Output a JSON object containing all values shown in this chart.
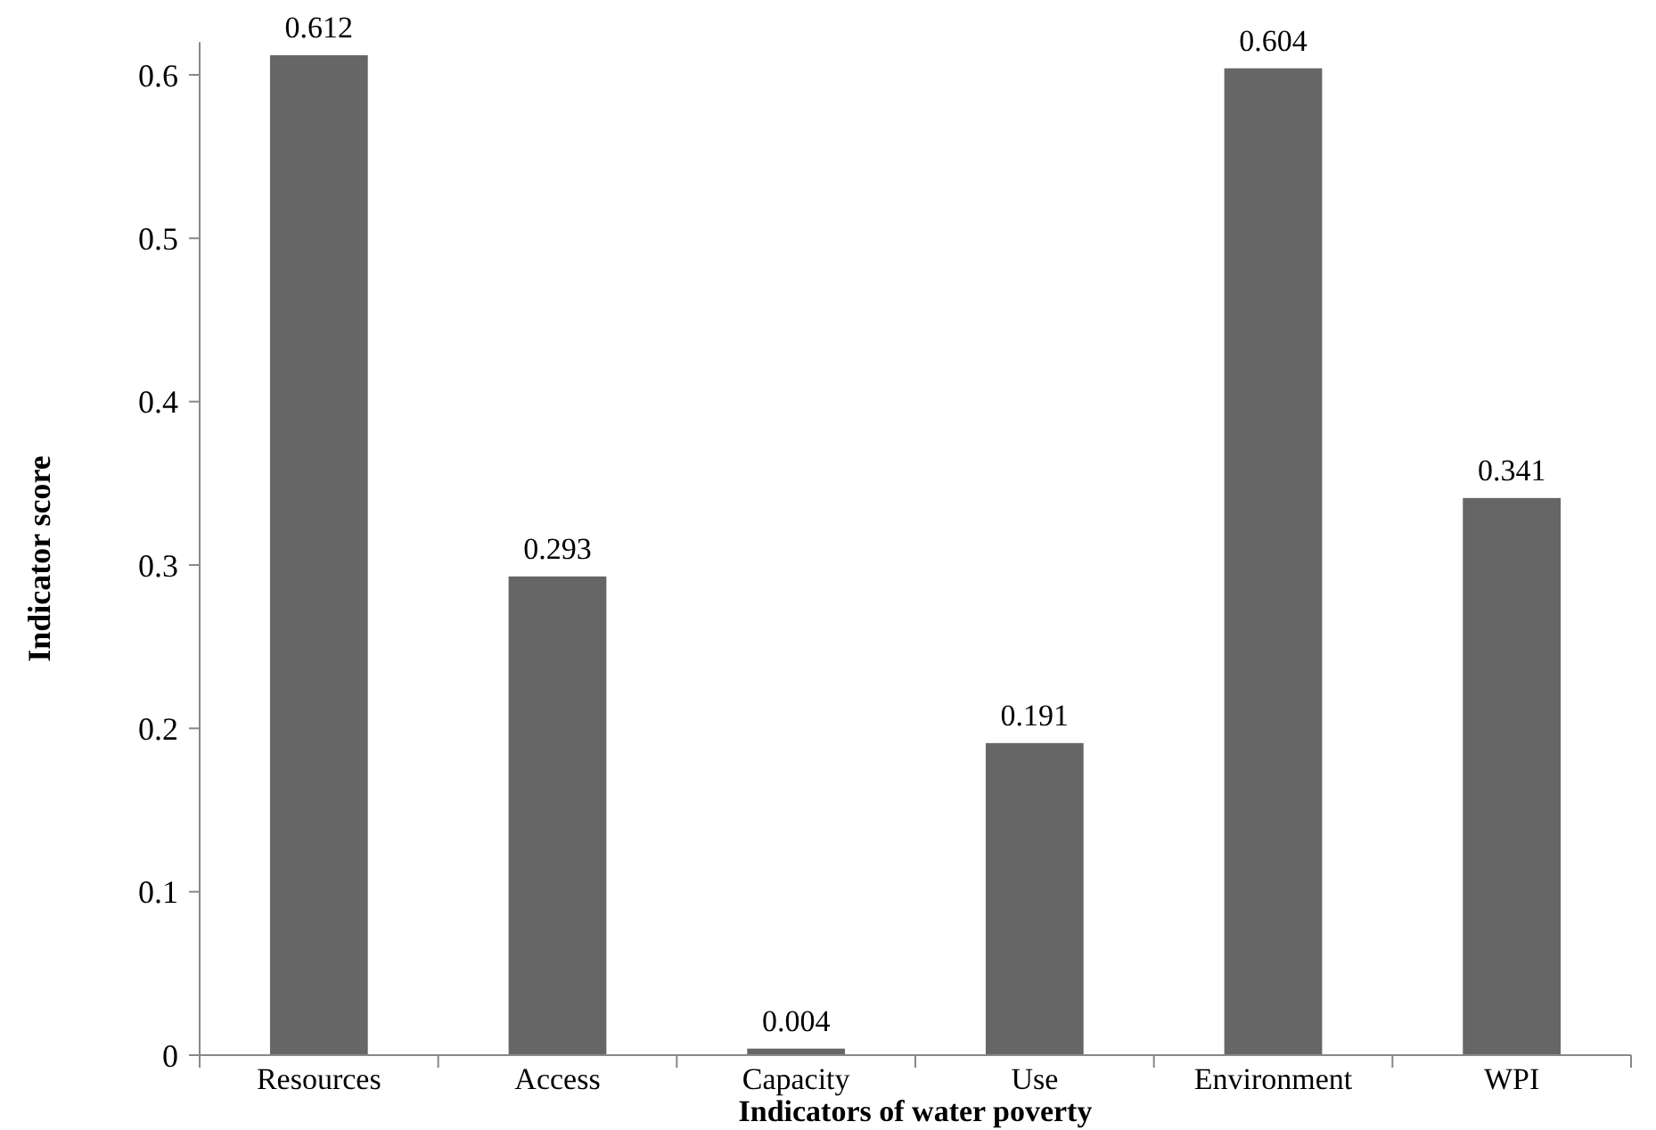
{
  "chart_data": {
    "type": "bar",
    "xlabel": "Indicators of water poverty",
    "ylabel": "Indicator score",
    "categories": [
      "Resources",
      "Access",
      "Capacity",
      "Use",
      "Environment",
      "WPI"
    ],
    "values": [
      0.612,
      0.293,
      0.004,
      0.191,
      0.604,
      0.341
    ],
    "color": "#666666",
    "ylim": [
      0,
      0.62
    ],
    "yticks": [
      {
        "value": 0,
        "label": "0"
      },
      0.1,
      0.2,
      0.3,
      0.4,
      0.5,
      0.6
    ],
    "data_labels": true,
    "grid": false
  }
}
